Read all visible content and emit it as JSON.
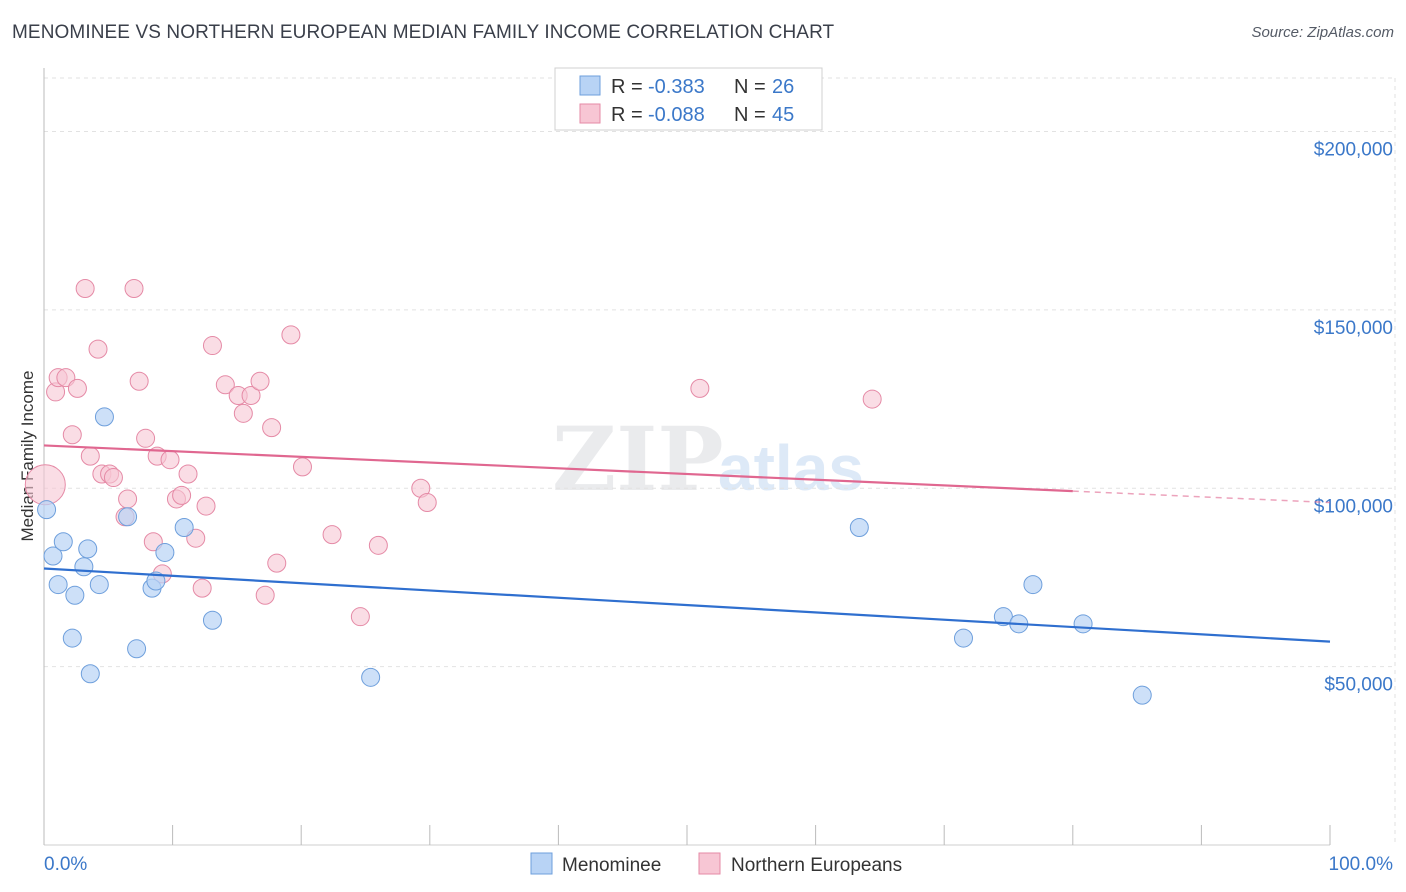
{
  "title": "MENOMINEE VS NORTHERN EUROPEAN MEDIAN FAMILY INCOME CORRELATION CHART",
  "source": "Source: ZipAtlas.com",
  "watermark": {
    "zip": "ZIP",
    "atlas": "atlas"
  },
  "colors": {
    "blue_fill": "#b8d3f5",
    "blue_stroke": "#6e9fdc",
    "blue_line": "#2f6fcf",
    "pink_fill": "#f7c6d4",
    "pink_stroke": "#e58aa6",
    "pink_line": "#e06790",
    "tick_text": "#3b78c9",
    "grid": "#e2e2e2"
  },
  "legend": {
    "rows": [
      {
        "r_label": "R =",
        "r_value": "-0.383",
        "n_label": "N =",
        "n_value": "26"
      },
      {
        "r_label": "R =",
        "r_value": "-0.088",
        "n_label": "N =",
        "n_value": "45"
      }
    ]
  },
  "bottom_legend": [
    "Menominee",
    "Northern Europeans"
  ],
  "chart_data": {
    "type": "scatter",
    "xlabel": "",
    "ylabel": "Median Family Income",
    "xlim": [
      0,
      100
    ],
    "ylim": [
      0,
      215000
    ],
    "x_tick_labels": [
      "0.0%",
      "100.0%"
    ],
    "y_ticks": [
      50000,
      100000,
      150000,
      200000
    ],
    "y_tick_labels": [
      "$50,000",
      "$100,000",
      "$150,000",
      "$200,000"
    ],
    "grid": true,
    "series": [
      {
        "name": "Menominee",
        "points": [
          [
            0.2,
            94000
          ],
          [
            0.7,
            81000
          ],
          [
            1.1,
            73000
          ],
          [
            1.5,
            85000
          ],
          [
            2.2,
            58000
          ],
          [
            2.4,
            70000
          ],
          [
            3.1,
            78000
          ],
          [
            3.4,
            83000
          ],
          [
            3.6,
            48000
          ],
          [
            4.3,
            73000
          ],
          [
            4.7,
            120000
          ],
          [
            6.5,
            92000
          ],
          [
            7.2,
            55000
          ],
          [
            8.4,
            72000
          ],
          [
            8.7,
            74000
          ],
          [
            9.4,
            82000
          ],
          [
            10.9,
            89000
          ],
          [
            13.1,
            63000
          ],
          [
            25.4,
            47000
          ],
          [
            63.4,
            89000
          ],
          [
            71.5,
            58000
          ],
          [
            74.6,
            64000
          ],
          [
            75.8,
            62000
          ],
          [
            76.9,
            73000
          ],
          [
            80.8,
            62000
          ],
          [
            85.4,
            42000
          ]
        ],
        "trend": {
          "x_start": 0,
          "y_start": 77500,
          "x_end": 100,
          "y_end": 57000,
          "dashed_from": null
        }
      },
      {
        "name": "Northern Europeans",
        "points": [
          [
            0.1,
            101000
          ],
          [
            0.9,
            127000
          ],
          [
            1.1,
            131000
          ],
          [
            1.7,
            131000
          ],
          [
            2.2,
            115000
          ],
          [
            2.6,
            128000
          ],
          [
            3.2,
            156000
          ],
          [
            3.6,
            109000
          ],
          [
            4.2,
            139000
          ],
          [
            4.5,
            104000
          ],
          [
            5.1,
            104000
          ],
          [
            5.4,
            103000
          ],
          [
            6.3,
            92000
          ],
          [
            6.5,
            97000
          ],
          [
            7.0,
            156000
          ],
          [
            7.4,
            130000
          ],
          [
            7.9,
            114000
          ],
          [
            8.5,
            85000
          ],
          [
            8.8,
            109000
          ],
          [
            9.2,
            76000
          ],
          [
            9.8,
            108000
          ],
          [
            10.3,
            97000
          ],
          [
            10.7,
            98000
          ],
          [
            11.2,
            104000
          ],
          [
            11.8,
            86000
          ],
          [
            12.3,
            72000
          ],
          [
            12.6,
            95000
          ],
          [
            13.1,
            140000
          ],
          [
            14.1,
            129000
          ],
          [
            15.1,
            126000
          ],
          [
            15.5,
            121000
          ],
          [
            16.1,
            126000
          ],
          [
            16.8,
            130000
          ],
          [
            17.7,
            117000
          ],
          [
            18.1,
            79000
          ],
          [
            17.2,
            70000
          ],
          [
            19.2,
            143000
          ],
          [
            20.1,
            106000
          ],
          [
            22.4,
            87000
          ],
          [
            24.6,
            64000
          ],
          [
            26.0,
            84000
          ],
          [
            29.3,
            100000
          ],
          [
            29.8,
            96000
          ],
          [
            51.0,
            128000
          ],
          [
            64.4,
            125000
          ]
        ],
        "trend": {
          "x_start": 0,
          "y_start": 112000,
          "x_end": 100,
          "y_end": 96000,
          "dashed_from": 80
        }
      }
    ]
  }
}
